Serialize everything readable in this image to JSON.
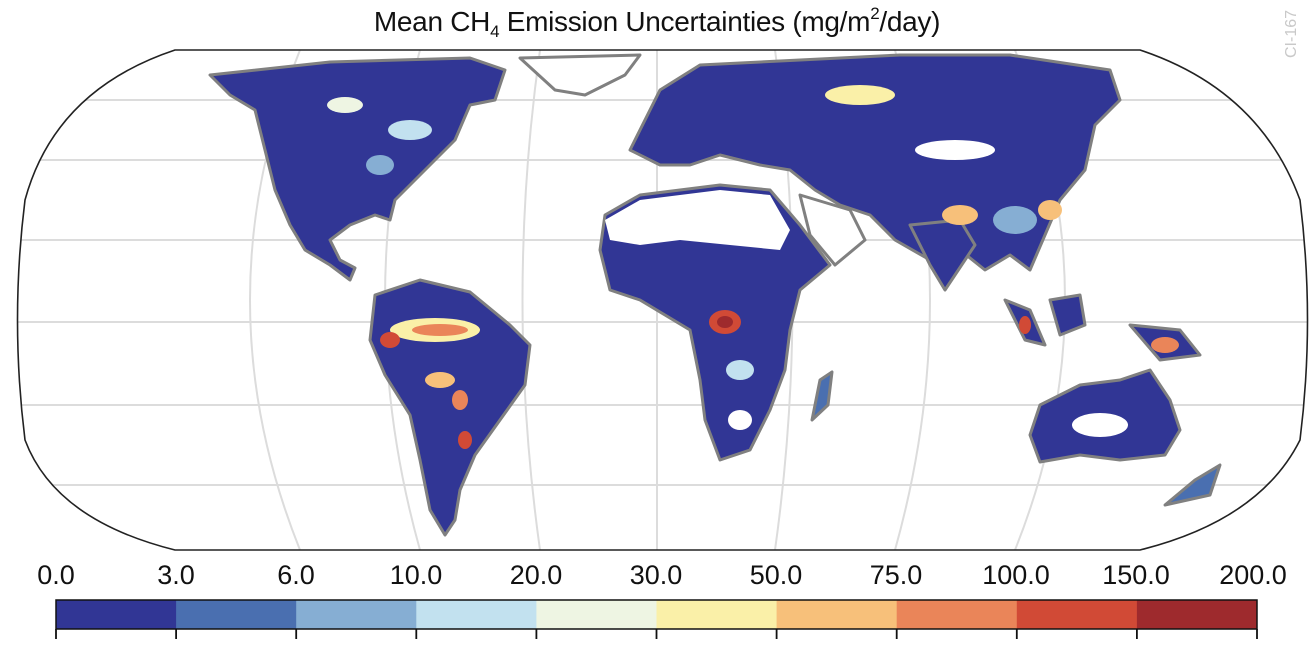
{
  "title": {
    "prefix": "Mean CH",
    "subscript": "4",
    "middle": " Emission Uncertainties (mg/m",
    "superscript": "2",
    "suffix": "/day)"
  },
  "watermark": "CI-167",
  "colorbar": {
    "tick_labels": [
      "0.0",
      "3.0",
      "6.0",
      "10.0",
      "20.0",
      "30.0",
      "50.0",
      "75.0",
      "100.0",
      "150.0",
      "200.0"
    ],
    "colors": [
      "#313695",
      "#4a6fb0",
      "#86aed3",
      "#c2e1ef",
      "#eef5e3",
      "#faf0a8",
      "#f7c07a",
      "#ea8559",
      "#d14a36",
      "#9e2a2d"
    ]
  },
  "map": {
    "projection": "Robinson",
    "land_outline_color": "#808080",
    "graticule_color": "#dcdcdc",
    "no_data_color": "#ffffff"
  }
}
